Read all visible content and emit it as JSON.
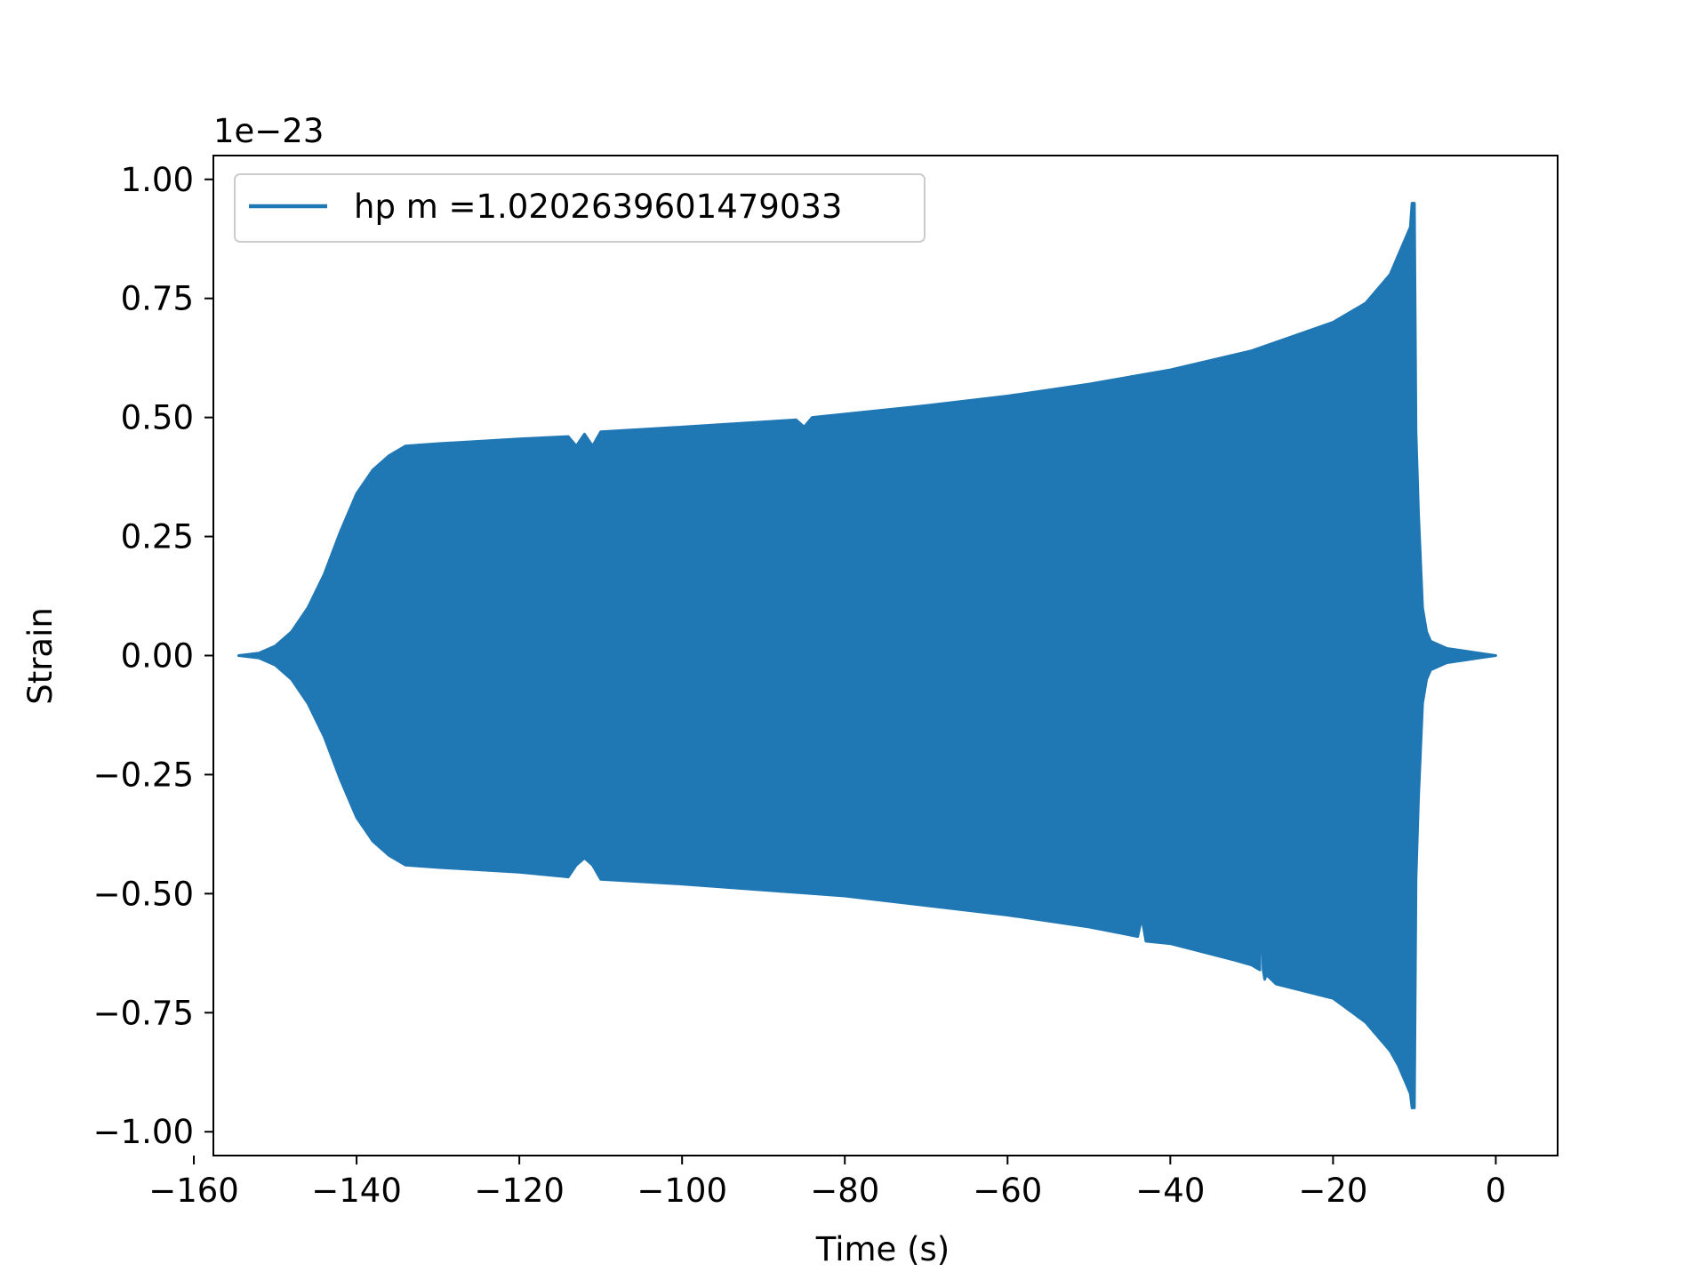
{
  "chart_data": {
    "type": "line",
    "title": "",
    "xlabel": "Time (s)",
    "ylabel": "Strain",
    "offset_label": "1e−23",
    "xlim": [
      -157.6,
      7.6
    ],
    "ylim": [
      -1.05,
      1.05
    ],
    "xticks": [
      -160,
      -140,
      -120,
      -100,
      -80,
      -60,
      -40,
      -20,
      0
    ],
    "xtick_labels": [
      "−160",
      "−140",
      "−120",
      "−100",
      "−80",
      "−60",
      "−40",
      "−20",
      "0"
    ],
    "yticks": [
      1.0,
      0.75,
      0.5,
      0.25,
      0.0,
      -0.25,
      -0.5,
      -0.75,
      -1.0
    ],
    "ytick_labels": [
      "1.00",
      "0.75",
      "0.50",
      "0.25",
      "0.00",
      "−0.25",
      "−0.50",
      "−0.75",
      "−1.00"
    ],
    "grid": false,
    "legend": {
      "placement": "upper-left",
      "entries": [
        "hp m =1.0202639601479033"
      ]
    },
    "series": [
      {
        "name": "hp m =1.0202639601479033",
        "color": "#1f77b4",
        "envelope_upper": {
          "x": [
            -154.5,
            -152,
            -150,
            -148,
            -146,
            -144,
            -142,
            -140,
            -138,
            -136,
            -134,
            -130,
            -120,
            -114,
            -113,
            -112,
            -111,
            -110,
            -100,
            -86,
            -85,
            -84,
            -70,
            -60,
            -50,
            -40,
            -30,
            -20,
            -16,
            -13,
            -12,
            -11,
            -10.5,
            -10.3,
            -10,
            -9.8,
            -9.5,
            -9,
            -8.5,
            -8,
            -6,
            -4,
            -2,
            0
          ],
          "y": [
            0.0,
            0.005,
            0.02,
            0.05,
            0.1,
            0.17,
            0.26,
            0.34,
            0.39,
            0.42,
            0.44,
            0.445,
            0.455,
            0.46,
            0.44,
            0.465,
            0.44,
            0.47,
            0.48,
            0.495,
            0.48,
            0.5,
            0.525,
            0.545,
            0.57,
            0.6,
            0.64,
            0.7,
            0.74,
            0.8,
            0.84,
            0.88,
            0.9,
            0.95,
            0.95,
            0.47,
            0.3,
            0.1,
            0.05,
            0.03,
            0.015,
            0.01,
            0.005,
            0.0
          ]
        },
        "envelope_lower": {
          "x": [
            -154.5,
            -152,
            -150,
            -148,
            -146,
            -144,
            -142,
            -140,
            -138,
            -136,
            -134,
            -130,
            -120,
            -114,
            -113,
            -112,
            -111,
            -110,
            -100,
            -80,
            -70,
            -60,
            -50,
            -44,
            -43.5,
            -43,
            -40,
            -32,
            -30,
            -29,
            -28.8,
            -28.6,
            -28.4,
            -28.2,
            -27,
            -20,
            -16,
            -13,
            -12,
            -11,
            -10.5,
            -10.3,
            -10,
            -9.8,
            -9.5,
            -9,
            -8.5,
            -8,
            -6,
            -4,
            -2,
            0
          ],
          "y": [
            0.0,
            -0.005,
            -0.02,
            -0.05,
            -0.1,
            -0.17,
            -0.26,
            -0.34,
            -0.39,
            -0.42,
            -0.44,
            -0.445,
            -0.455,
            -0.465,
            -0.44,
            -0.425,
            -0.44,
            -0.47,
            -0.48,
            -0.505,
            -0.525,
            -0.545,
            -0.57,
            -0.59,
            -0.55,
            -0.6,
            -0.605,
            -0.64,
            -0.65,
            -0.66,
            -0.47,
            -0.66,
            -0.68,
            -0.67,
            -0.69,
            -0.72,
            -0.77,
            -0.83,
            -0.86,
            -0.9,
            -0.92,
            -0.95,
            -0.95,
            -0.47,
            -0.3,
            -0.1,
            -0.05,
            -0.03,
            -0.015,
            -0.01,
            -0.005,
            0.0
          ]
        }
      }
    ]
  }
}
